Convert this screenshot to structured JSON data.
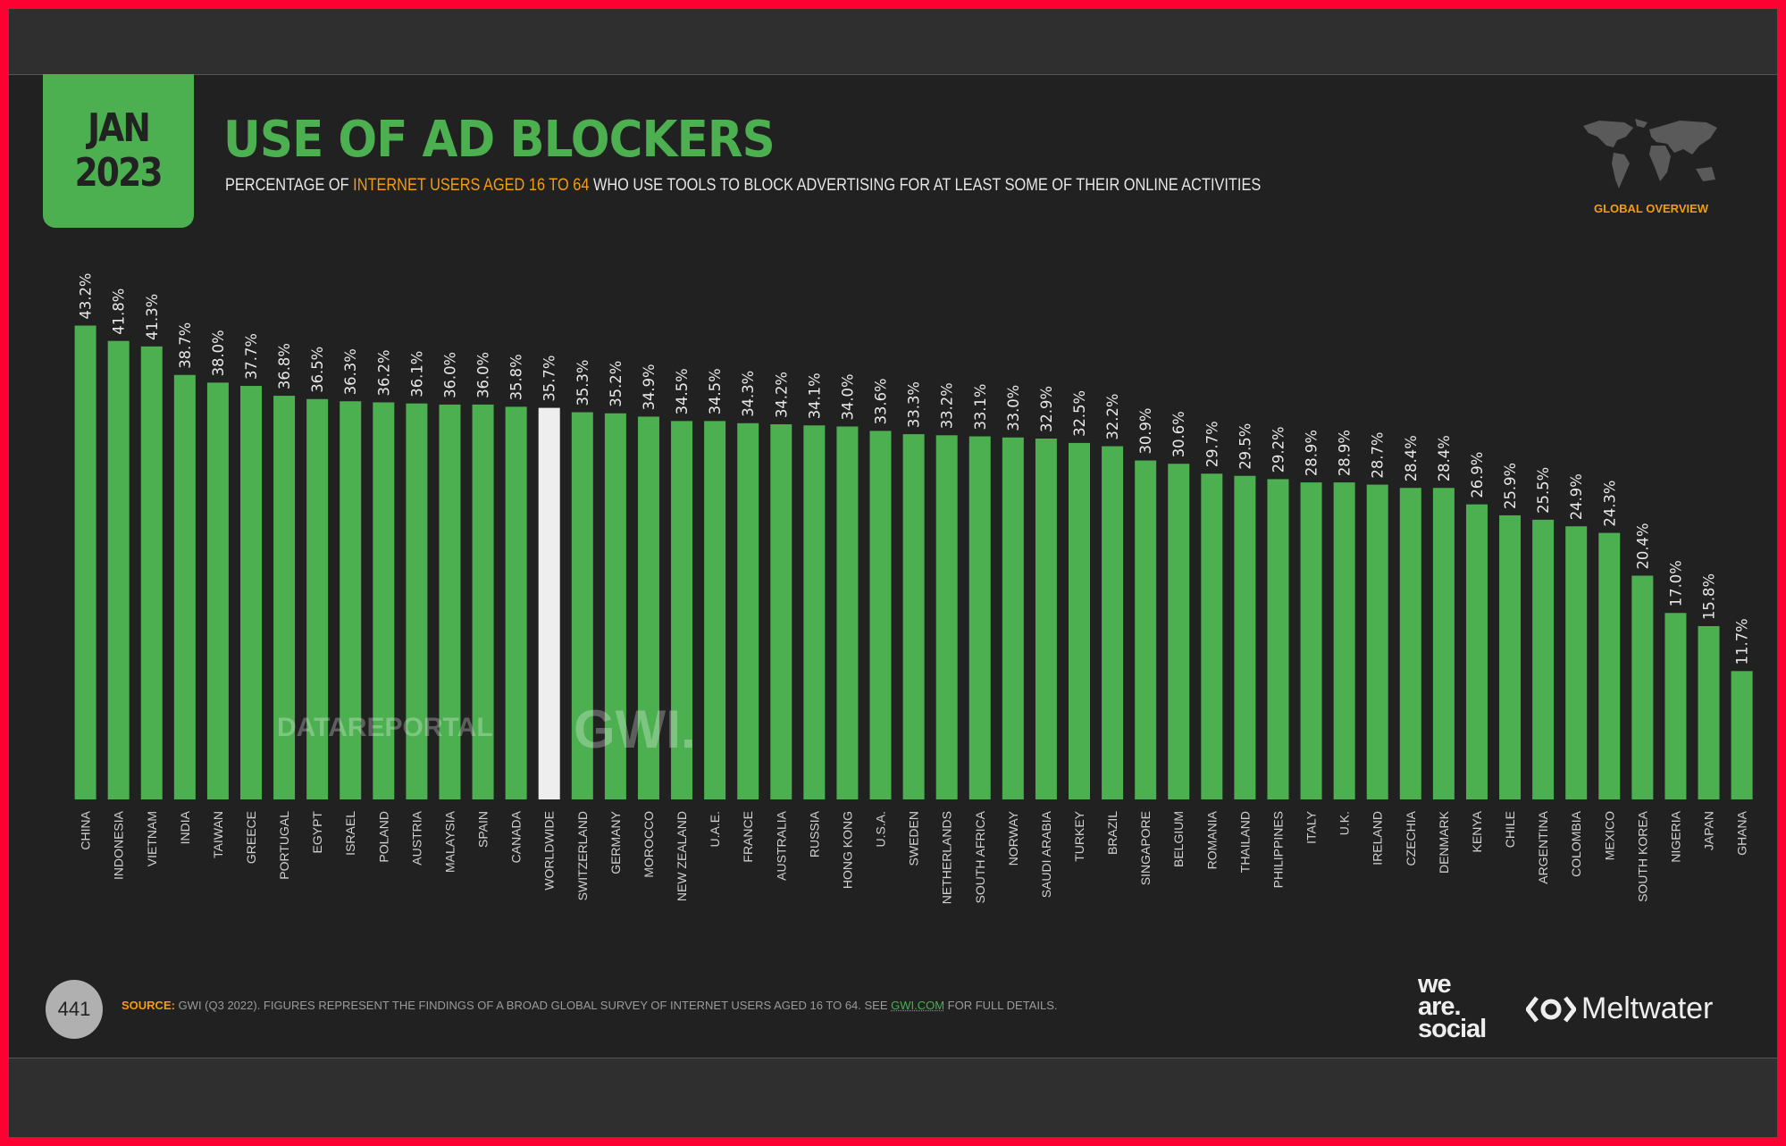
{
  "date_badge": {
    "month": "JAN",
    "year": "2023"
  },
  "header": {
    "title": "USE OF AD BLOCKERS",
    "subtitle_pre": "PERCENTAGE OF ",
    "subtitle_highlight": "INTERNET USERS AGED 16 TO 64",
    "subtitle_post": " WHO USE TOOLS TO BLOCK ADVERTISING FOR AT LEAST SOME OF THEIR ONLINE ACTIVITIES",
    "region_label": "GLOBAL OVERVIEW",
    "region_icon": "world-map-icon"
  },
  "watermarks": {
    "datareportal": "DATAREPORTAL",
    "gwi": "GWI."
  },
  "footer": {
    "page_number": "441",
    "source_label": "SOURCE:",
    "source_text": " GWI (Q3 2022). FIGURES REPRESENT THE FINDINGS OF A BROAD GLOBAL SURVEY OF INTERNET USERS AGED 16 TO 64. SEE ",
    "source_link": "GWI.COM",
    "source_tail": " FOR FULL DETAILS.",
    "logo_we_are_social": "we are social",
    "logo_meltwater": "Meltwater"
  },
  "colors": {
    "bar": "#4caf50",
    "highlight_bar": "#eeeeee",
    "accent": "#f39c12",
    "background": "#212121"
  },
  "chart_data": {
    "type": "bar",
    "title": "USE OF AD BLOCKERS",
    "unit": "%",
    "highlight": "WORLDWIDE",
    "ylim": [
      0,
      45
    ],
    "grid": false,
    "categories": [
      "CHINA",
      "INDONESIA",
      "VIETNAM",
      "INDIA",
      "TAIWAN",
      "GREECE",
      "PORTUGAL",
      "EGYPT",
      "ISRAEL",
      "POLAND",
      "AUSTRIA",
      "MALAYSIA",
      "SPAIN",
      "CANADA",
      "WORLDWIDE",
      "SWITZERLAND",
      "GERMANY",
      "MOROCCO",
      "NEW ZEALAND",
      "U.A.E.",
      "FRANCE",
      "AUSTRALIA",
      "RUSSIA",
      "HONG KONG",
      "U.S.A.",
      "SWEDEN",
      "NETHERLANDS",
      "SOUTH AFRICA",
      "NORWAY",
      "SAUDI ARABIA",
      "TURKEY",
      "BRAZIL",
      "SINGAPORE",
      "BELGIUM",
      "ROMANIA",
      "THAILAND",
      "PHILIPPINES",
      "ITALY",
      "U.K.",
      "IRELAND",
      "CZECHIA",
      "DENMARK",
      "KENYA",
      "CHILE",
      "ARGENTINA",
      "COLOMBIA",
      "MEXICO",
      "SOUTH KOREA",
      "NIGERIA",
      "JAPAN",
      "GHANA"
    ],
    "values": [
      43.2,
      41.8,
      41.3,
      38.7,
      38.0,
      37.7,
      36.8,
      36.5,
      36.3,
      36.2,
      36.1,
      36.0,
      36.0,
      35.8,
      35.7,
      35.3,
      35.2,
      34.9,
      34.5,
      34.5,
      34.3,
      34.2,
      34.1,
      34.0,
      33.6,
      33.3,
      33.2,
      33.1,
      33.0,
      32.9,
      32.5,
      32.2,
      30.9,
      30.6,
      29.7,
      29.5,
      29.2,
      28.9,
      28.9,
      28.7,
      28.4,
      28.4,
      26.9,
      25.9,
      25.5,
      24.9,
      24.3,
      20.4,
      17.0,
      15.8,
      11.7
    ],
    "labels": [
      "43.2%",
      "41.8%",
      "41.3%",
      "38.7%",
      "38.0%",
      "37.7%",
      "36.8%",
      "36.5%",
      "36.3%",
      "36.2%",
      "36.1%",
      "36.0%",
      "36.0%",
      "35.8%",
      "35.7%",
      "35.3%",
      "35.2%",
      "34.9%",
      "34.5%",
      "34.5%",
      "34.3%",
      "34.2%",
      "34.1%",
      "34.0%",
      "33.6%",
      "33.3%",
      "33.2%",
      "33.1%",
      "33.0%",
      "32.9%",
      "32.5%",
      "32.2%",
      "30.9%",
      "30.6%",
      "29.7%",
      "29.5%",
      "29.2%",
      "28.9%",
      "28.9%",
      "28.7%",
      "28.4%",
      "28.4%",
      "26.9%",
      "25.9%",
      "25.5%",
      "24.9%",
      "24.3%",
      "20.4%",
      "17.0%",
      "15.8%",
      "11.7%"
    ]
  }
}
